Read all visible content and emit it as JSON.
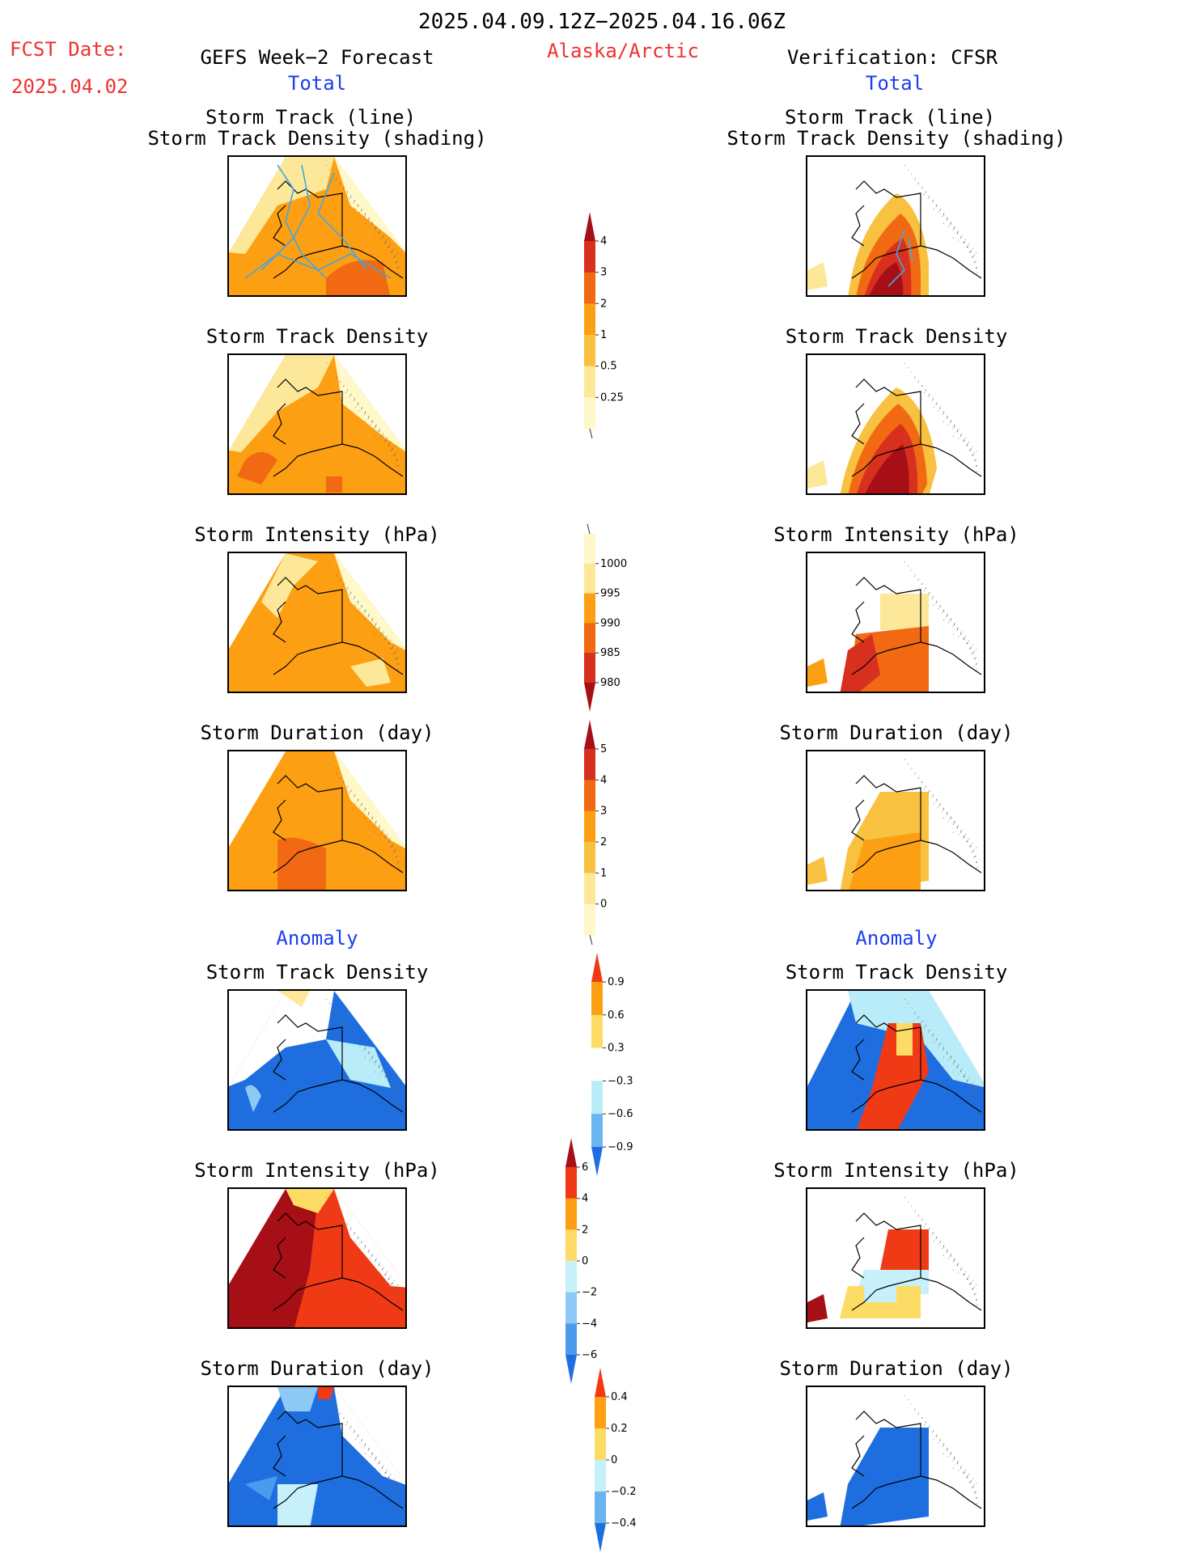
{
  "header": {
    "period": "2025.04.09.12Z−2025.04.16.06Z",
    "fcst_label": "FCST Date:",
    "fcst_date": "2025.04.02",
    "left_title": "GEFS Week−2 Forecast",
    "region": "Alaska/Arctic",
    "right_title": "Verification: CFSR"
  },
  "sections": {
    "total": "Total",
    "anomaly": "Anomaly"
  },
  "panels": {
    "track_line": "Storm Track (line)",
    "track_density_shading": "Storm Track Density (shading)",
    "track_density": "Storm Track Density",
    "intensity": "Storm Intensity (hPa)",
    "duration": "Storm Duration (day)"
  },
  "colorbars": {
    "density_total": {
      "ticks": [
        "4",
        "3",
        "2",
        "1",
        "0.5",
        "0.25"
      ],
      "colors": [
        "#a50f15",
        "#d7301f",
        "#f16913",
        "#fd9f12",
        "#f9c140",
        "#fde89a",
        "#fff8c8"
      ]
    },
    "intensity_total": {
      "ticks": [
        "1000",
        "995",
        "990",
        "985",
        "980"
      ],
      "colors": [
        "#fff8c8",
        "#fde89a",
        "#fd9f12",
        "#f16913",
        "#d7301f",
        "#a50f15"
      ]
    },
    "duration_total": {
      "ticks": [
        "5",
        "4",
        "3",
        "2",
        "1",
        "0"
      ],
      "colors": [
        "#a50f15",
        "#d7301f",
        "#f16913",
        "#fd9f12",
        "#f9c140",
        "#fde89a",
        "#fff8c8"
      ]
    },
    "density_anom": {
      "ticks": [
        "0.9",
        "0.6",
        "0.3",
        "−0.3",
        "−0.6",
        "−0.9"
      ],
      "colors": [
        "#f03a16",
        "#fd9f12",
        "#fddc66",
        "#ffffff",
        "#b8ecf8",
        "#6ab4f0",
        "#1f6ee0"
      ]
    },
    "intensity_anom": {
      "ticks": [
        "6",
        "4",
        "2",
        "0",
        "−2",
        "−4",
        "−6"
      ],
      "colors": [
        "#a50f15",
        "#f03a16",
        "#fd9f12",
        "#fddc66",
        "#c6f0fa",
        "#8ccaf5",
        "#4a9aee",
        "#1f6ee0"
      ]
    },
    "duration_anom": {
      "ticks": [
        "0.4",
        "0.2",
        "0",
        "−0.2",
        "−0.4"
      ],
      "colors": [
        "#f03a16",
        "#fd9f12",
        "#fddc66",
        "#c6f0fa",
        "#6ab4f0",
        "#1f6ee0"
      ]
    }
  },
  "colors": {
    "title_red": "#f03030",
    "section_blue": "#1a3cf0",
    "track_line": "#3ea8e8"
  }
}
